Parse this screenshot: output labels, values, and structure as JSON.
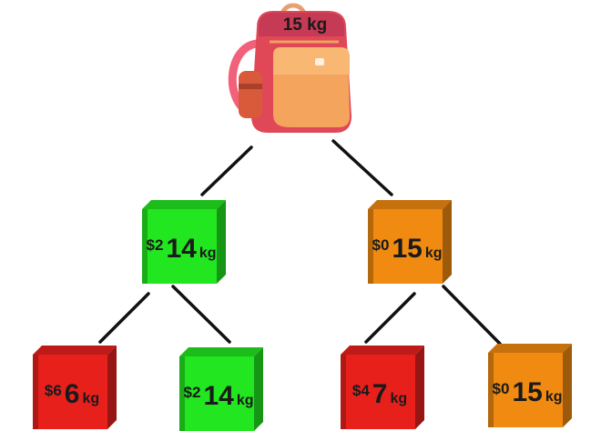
{
  "backpack": {
    "capacity_label": "15 kg"
  },
  "colors": {
    "green": "#22e620",
    "orange": "#f08a10",
    "red": "#e8201c",
    "line": "#111111"
  },
  "tree": {
    "level1": [
      {
        "id": "n1",
        "color": "green",
        "price": "$2",
        "weight": "14",
        "unit": "kg"
      },
      {
        "id": "n2",
        "color": "orange",
        "price": "$0",
        "weight": "15",
        "unit": "kg"
      }
    ],
    "level2": [
      {
        "id": "n3",
        "color": "red",
        "price": "$6",
        "weight": "6",
        "unit": "kg"
      },
      {
        "id": "n4",
        "color": "green",
        "price": "$2",
        "weight": "14",
        "unit": "kg"
      },
      {
        "id": "n5",
        "color": "red",
        "price": "$4",
        "weight": "7",
        "unit": "kg"
      },
      {
        "id": "n6",
        "color": "orange",
        "price": "$0",
        "weight": "15",
        "unit": "kg"
      }
    ]
  }
}
